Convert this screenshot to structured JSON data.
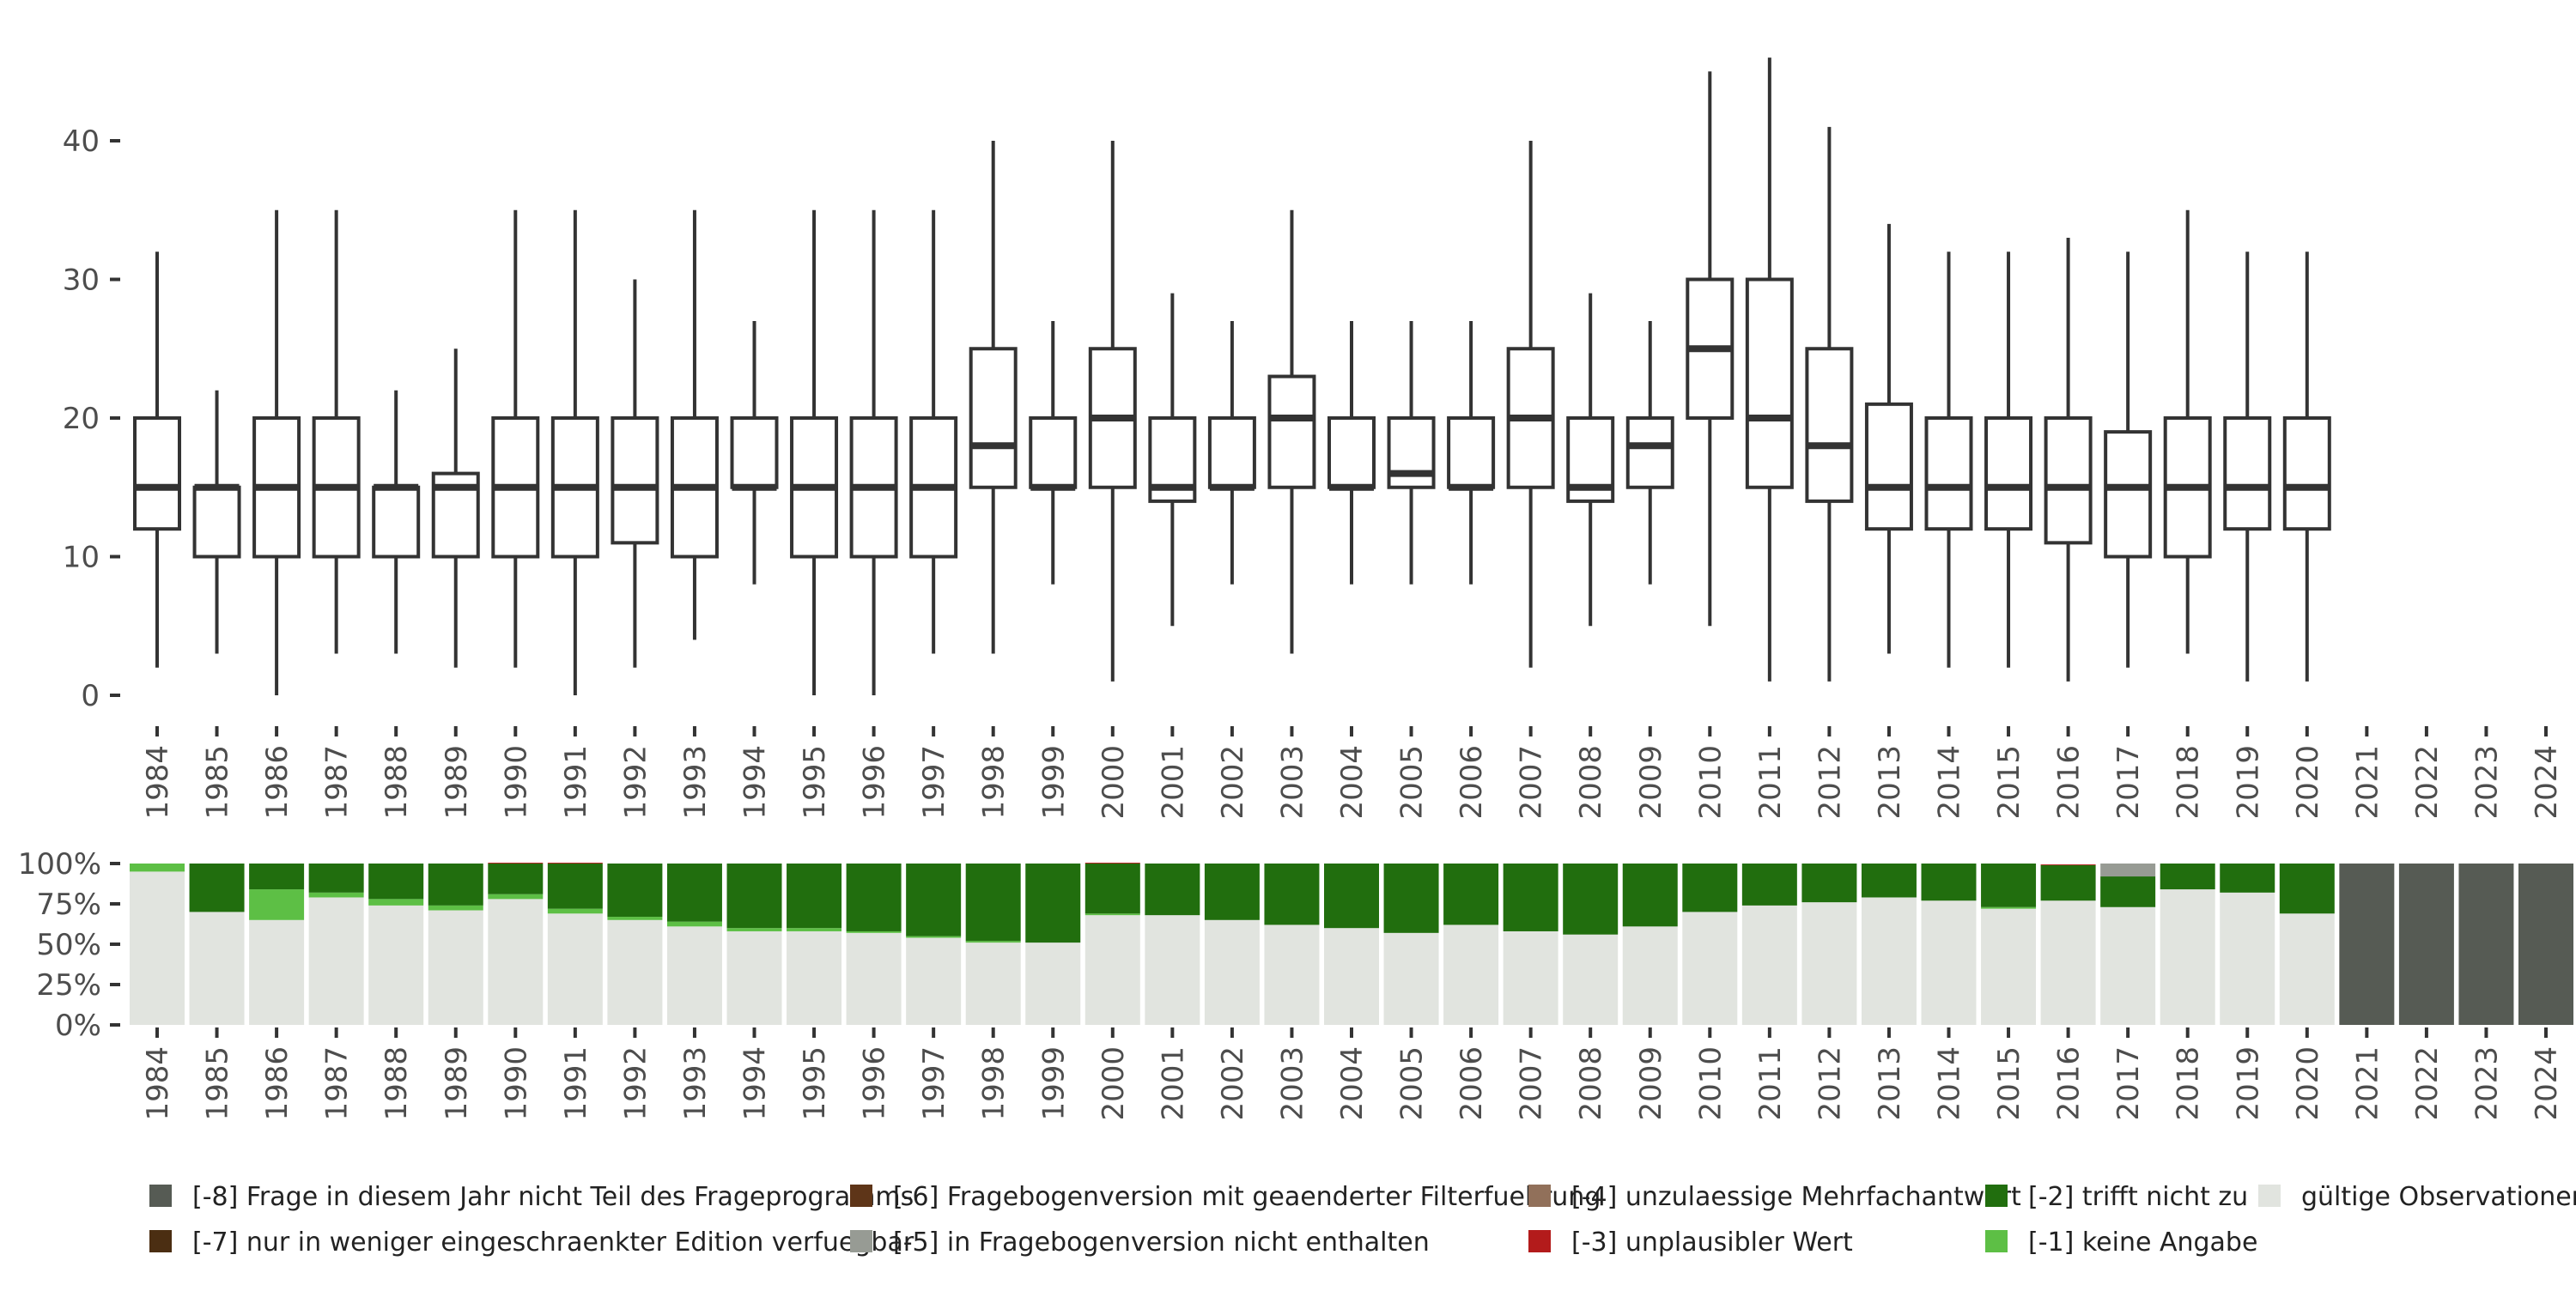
{
  "chart_data": [
    {
      "type": "boxplot",
      "title": "",
      "xlabel": "",
      "ylabel": "",
      "ylim": [
        -2,
        47
      ],
      "yticks": [
        0,
        10,
        20,
        30,
        40
      ],
      "ytick_labels": [
        "0",
        "10",
        "20",
        "30",
        "40"
      ],
      "categories": [
        "1984",
        "1985",
        "1986",
        "1987",
        "1988",
        "1989",
        "1990",
        "1991",
        "1992",
        "1993",
        "1994",
        "1995",
        "1996",
        "1997",
        "1998",
        "1999",
        "2000",
        "2001",
        "2002",
        "2003",
        "2004",
        "2005",
        "2006",
        "2007",
        "2008",
        "2009",
        "2010",
        "2011",
        "2012",
        "2013",
        "2014",
        "2015",
        "2016",
        "2017",
        "2018",
        "2019",
        "2020",
        "2021",
        "2022",
        "2023",
        "2024"
      ],
      "boxes": [
        {
          "year": "1984",
          "whislo": 2,
          "q1": 12,
          "med": 15,
          "q3": 20,
          "whishi": 32
        },
        {
          "year": "1985",
          "whislo": 3,
          "q1": 10,
          "med": 15,
          "q3": 15,
          "whishi": 22
        },
        {
          "year": "1986",
          "whislo": 0,
          "q1": 10,
          "med": 15,
          "q3": 20,
          "whishi": 35
        },
        {
          "year": "1987",
          "whislo": 3,
          "q1": 10,
          "med": 15,
          "q3": 20,
          "whishi": 35
        },
        {
          "year": "1988",
          "whislo": 3,
          "q1": 10,
          "med": 15,
          "q3": 15,
          "whishi": 22
        },
        {
          "year": "1989",
          "whislo": 2,
          "q1": 10,
          "med": 15,
          "q3": 16,
          "whishi": 25
        },
        {
          "year": "1990",
          "whislo": 2,
          "q1": 10,
          "med": 15,
          "q3": 20,
          "whishi": 35
        },
        {
          "year": "1991",
          "whislo": 0,
          "q1": 10,
          "med": 15,
          "q3": 20,
          "whishi": 35
        },
        {
          "year": "1992",
          "whislo": 2,
          "q1": 11,
          "med": 15,
          "q3": 20,
          "whishi": 30
        },
        {
          "year": "1993",
          "whislo": 4,
          "q1": 10,
          "med": 15,
          "q3": 20,
          "whishi": 35
        },
        {
          "year": "1994",
          "whislo": 8,
          "q1": 15,
          "med": 15,
          "q3": 20,
          "whishi": 27
        },
        {
          "year": "1995",
          "whislo": 0,
          "q1": 10,
          "med": 15,
          "q3": 20,
          "whishi": 35
        },
        {
          "year": "1996",
          "whislo": 0,
          "q1": 10,
          "med": 15,
          "q3": 20,
          "whishi": 35
        },
        {
          "year": "1997",
          "whislo": 3,
          "q1": 10,
          "med": 15,
          "q3": 20,
          "whishi": 35
        },
        {
          "year": "1998",
          "whislo": 3,
          "q1": 15,
          "med": 18,
          "q3": 25,
          "whishi": 40
        },
        {
          "year": "1999",
          "whislo": 8,
          "q1": 15,
          "med": 15,
          "q3": 20,
          "whishi": 27
        },
        {
          "year": "2000",
          "whislo": 1,
          "q1": 15,
          "med": 20,
          "q3": 25,
          "whishi": 40
        },
        {
          "year": "2001",
          "whislo": 5,
          "q1": 14,
          "med": 15,
          "q3": 20,
          "whishi": 29
        },
        {
          "year": "2002",
          "whislo": 8,
          "q1": 15,
          "med": 15,
          "q3": 20,
          "whishi": 27
        },
        {
          "year": "2003",
          "whislo": 3,
          "q1": 15,
          "med": 20,
          "q3": 23,
          "whishi": 35
        },
        {
          "year": "2004",
          "whislo": 8,
          "q1": 15,
          "med": 15,
          "q3": 20,
          "whishi": 27
        },
        {
          "year": "2005",
          "whislo": 8,
          "q1": 15,
          "med": 16,
          "q3": 20,
          "whishi": 27
        },
        {
          "year": "2006",
          "whislo": 8,
          "q1": 15,
          "med": 15,
          "q3": 20,
          "whishi": 27
        },
        {
          "year": "2007",
          "whislo": 2,
          "q1": 15,
          "med": 20,
          "q3": 25,
          "whishi": 40
        },
        {
          "year": "2008",
          "whislo": 5,
          "q1": 14,
          "med": 15,
          "q3": 20,
          "whishi": 29
        },
        {
          "year": "2009",
          "whislo": 8,
          "q1": 15,
          "med": 18,
          "q3": 20,
          "whishi": 27
        },
        {
          "year": "2010",
          "whislo": 5,
          "q1": 20,
          "med": 25,
          "q3": 30,
          "whishi": 45
        },
        {
          "year": "2011",
          "whislo": 1,
          "q1": 15,
          "med": 20,
          "q3": 30,
          "whishi": 46
        },
        {
          "year": "2012",
          "whislo": 1,
          "q1": 14,
          "med": 18,
          "q3": 25,
          "whishi": 41
        },
        {
          "year": "2013",
          "whislo": 3,
          "q1": 12,
          "med": 15,
          "q3": 21,
          "whishi": 34
        },
        {
          "year": "2014",
          "whislo": 2,
          "q1": 12,
          "med": 15,
          "q3": 20,
          "whishi": 32
        },
        {
          "year": "2015",
          "whislo": 2,
          "q1": 12,
          "med": 15,
          "q3": 20,
          "whishi": 32
        },
        {
          "year": "2016",
          "whislo": 1,
          "q1": 11,
          "med": 15,
          "q3": 20,
          "whishi": 33
        },
        {
          "year": "2017",
          "whislo": 2,
          "q1": 10,
          "med": 15,
          "q3": 19,
          "whishi": 32
        },
        {
          "year": "2018",
          "whislo": 3,
          "q1": 10,
          "med": 15,
          "q3": 20,
          "whishi": 35
        },
        {
          "year": "2019",
          "whislo": 1,
          "q1": 12,
          "med": 15,
          "q3": 20,
          "whishi": 32
        },
        {
          "year": "2020",
          "whislo": 1,
          "q1": 12,
          "med": 15,
          "q3": 20,
          "whishi": 32
        }
      ]
    },
    {
      "type": "stacked-bar",
      "title": "",
      "ylim": [
        0,
        100
      ],
      "yticks": [
        0,
        25,
        50,
        75,
        100
      ],
      "ytick_labels": [
        "0%",
        "25%",
        "50%",
        "75%",
        "100%"
      ],
      "categories": [
        "1984",
        "1985",
        "1986",
        "1987",
        "1988",
        "1989",
        "1990",
        "1991",
        "1992",
        "1993",
        "1994",
        "1995",
        "1996",
        "1997",
        "1998",
        "1999",
        "2000",
        "2001",
        "2002",
        "2003",
        "2004",
        "2005",
        "2006",
        "2007",
        "2008",
        "2009",
        "2010",
        "2011",
        "2012",
        "2013",
        "2014",
        "2015",
        "2016",
        "2017",
        "2018",
        "2019",
        "2020",
        "2021",
        "2022",
        "2023",
        "2024"
      ],
      "series": [
        {
          "name": "gültige Observationen",
          "color": "#e1e4df",
          "values": [
            95,
            70,
            65,
            79,
            74,
            71,
            78,
            69,
            65,
            61,
            58,
            58,
            57,
            54,
            51,
            51,
            68,
            68,
            65,
            62,
            60,
            57,
            62,
            58,
            56,
            61,
            70,
            74,
            76,
            79,
            77,
            72,
            77,
            73,
            84,
            82,
            69,
            0,
            0,
            0,
            0
          ]
        },
        {
          "name": "[-1] keine Angabe",
          "color": "#5dbf45",
          "values": [
            5,
            0,
            19,
            3,
            4,
            3,
            3,
            3,
            2,
            3,
            2,
            2,
            1,
            1,
            1,
            0,
            1,
            0,
            0,
            0,
            0,
            0,
            0,
            0,
            0,
            0,
            0,
            0,
            0,
            0,
            0,
            1,
            0,
            0,
            0,
            0,
            0,
            0,
            0,
            0,
            0
          ]
        },
        {
          "name": "[-2] trifft nicht zu",
          "color": "#216e0e",
          "values": [
            0,
            30,
            16,
            18,
            22,
            26,
            19,
            28,
            33,
            36,
            40,
            40,
            42,
            45,
            48,
            49,
            31,
            32,
            35,
            38,
            40,
            43,
            38,
            42,
            44,
            39,
            30,
            26,
            24,
            21,
            23,
            27,
            22,
            19,
            16,
            18,
            31,
            0,
            0,
            0,
            0
          ]
        },
        {
          "name": "[-3] unplausibler Wert",
          "color": "#b31b1b",
          "values": [
            0,
            0,
            0,
            0,
            0,
            0,
            0.5,
            0.5,
            0,
            0,
            0,
            0,
            0,
            0,
            0,
            0,
            0.5,
            0,
            0,
            0,
            0,
            0,
            0,
            0,
            0,
            0,
            0,
            0,
            0,
            0,
            0,
            0,
            0.5,
            0,
            0,
            0,
            0,
            0,
            0,
            0,
            0
          ]
        },
        {
          "name": "[-5] in Fragebogenversion nicht enthalten",
          "color": "#979b94",
          "values": [
            0,
            0,
            0,
            0,
            0,
            0,
            0,
            0,
            0,
            0,
            0,
            0,
            0,
            0,
            0,
            0,
            0,
            0,
            0,
            0,
            0,
            0,
            0,
            0,
            0,
            0,
            0,
            0,
            0,
            0,
            0,
            0,
            0,
            8,
            0,
            0,
            0,
            0,
            0,
            0,
            0
          ]
        },
        {
          "name": "[-8] Frage in diesem Jahr nicht Teil des Frageprogramms",
          "color": "#565b54",
          "values": [
            0,
            0,
            0,
            0,
            0,
            0,
            0,
            0,
            0,
            0,
            0,
            0,
            0,
            0,
            0,
            0,
            0,
            0,
            0,
            0,
            0,
            0,
            0,
            0,
            0,
            0,
            0,
            0,
            0,
            0,
            0,
            0,
            0,
            0,
            0,
            0,
            0,
            100,
            100,
            100,
            100
          ]
        }
      ]
    }
  ],
  "legend": {
    "placement": "bottom",
    "items": [
      {
        "label": "[-8] Frage in diesem Jahr nicht Teil des Frageprogramms",
        "color": "#565b54"
      },
      {
        "label": "[-7] nur in weniger eingeschraenkter Edition verfuegbar",
        "color": "#4b2e12"
      },
      {
        "label": "[-6] Fragebogenversion mit geaenderter Filterfuehrung",
        "color": "#5e3518"
      },
      {
        "label": "[-5] in Fragebogenversion nicht enthalten",
        "color": "#979b94"
      },
      {
        "label": "[-4] unzulaessige Mehrfachantwort",
        "color": "#91705a"
      },
      {
        "label": "[-3] unplausibler Wert",
        "color": "#b31b1b"
      },
      {
        "label": "[-2] trifft nicht zu",
        "color": "#216e0e"
      },
      {
        "label": "[-1] keine Angabe",
        "color": "#5dbf45"
      },
      {
        "label": "gültige Observationen",
        "color": "#e1e4df"
      }
    ]
  },
  "colors": {
    "box_stroke": "#333333",
    "tick": "#333333",
    "text": "#4d4d4d"
  }
}
